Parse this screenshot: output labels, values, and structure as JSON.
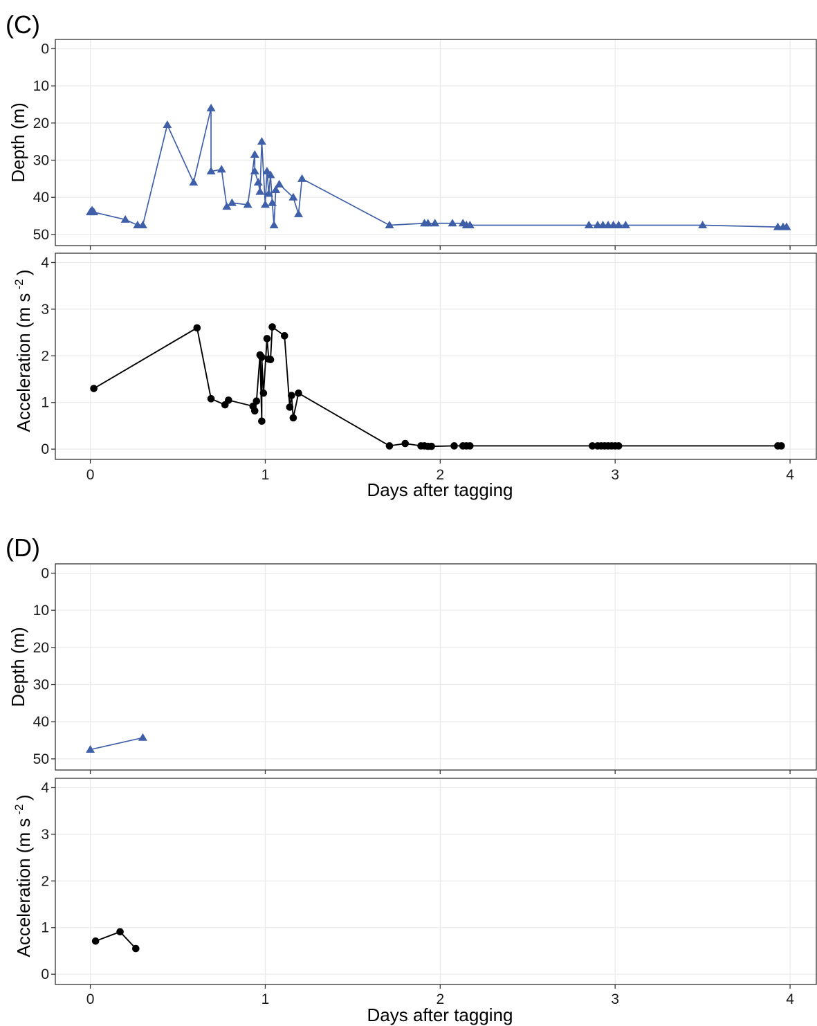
{
  "panel_labels": [
    "(C)",
    "(D)"
  ],
  "colors": {
    "depth": "#3f5fa8",
    "acceleration": "#000000",
    "grid": "#ebebeb",
    "frame": "#333333"
  },
  "chart_data": [
    {
      "panel": "(C)",
      "type": "line",
      "title": "",
      "xlabel": "Days after tagging",
      "x_ticks": [
        "0",
        "1",
        "2",
        "3",
        "4"
      ],
      "xlim": [
        -0.2,
        4.15
      ],
      "subplots": [
        {
          "ylabel": "Depth (m)",
          "ylim": [
            53,
            -2.5
          ],
          "y_reversed": true,
          "y_ticks": [
            "0",
            "10",
            "20",
            "30",
            "40",
            "50"
          ],
          "marker": "triangle",
          "series": [
            {
              "x": [
                0.0,
                0.01,
                0.02,
                0.2,
                0.27,
                0.3,
                0.44,
                0.59,
                0.69,
                0.69,
                0.75,
                0.78,
                0.81,
                0.9,
                0.94,
                0.94,
                0.96,
                0.97,
                0.98,
                1.0,
                1.01,
                1.02,
                1.03,
                1.04,
                1.05,
                1.06,
                1.08,
                1.16,
                1.19,
                1.21,
                1.71,
                1.91,
                1.93,
                1.97,
                2.07,
                2.13,
                2.15,
                2.17,
                2.85,
                2.9,
                2.93,
                2.96,
                2.99,
                3.02,
                3.06,
                3.5,
                3.93,
                3.96,
                3.98
              ],
              "y": [
                44,
                43.5,
                44,
                46,
                47.5,
                47.5,
                20.5,
                36,
                16,
                33,
                32.5,
                42.5,
                41.5,
                42,
                28.5,
                33,
                36,
                38.5,
                25,
                42,
                33,
                39,
                34,
                41.5,
                47.5,
                38,
                36.5,
                40,
                44.5,
                35,
                47.5,
                47,
                47,
                47,
                47,
                47,
                47.5,
                47.5,
                47.5,
                47.5,
                47.5,
                47.5,
                47.5,
                47.5,
                47.5,
                47.5,
                48,
                48,
                48
              ]
            }
          ]
        },
        {
          "ylabel": "Acceleration (m s-2)",
          "ylim": [
            -0.22,
            4.2
          ],
          "y_ticks": [
            "0",
            "1",
            "2",
            "3",
            "4"
          ],
          "marker": "circle",
          "series": [
            {
              "x": [
                0.02,
                0.61,
                0.69,
                0.77,
                0.79,
                0.93,
                0.94,
                0.95,
                0.97,
                0.98,
                0.98,
                0.99,
                1.01,
                1.02,
                1.03,
                1.04,
                1.11,
                1.14,
                1.15,
                1.16,
                1.19,
                1.71,
                1.8,
                1.89,
                1.91,
                1.93,
                1.95,
                2.08,
                2.13,
                2.15,
                2.17,
                2.87,
                2.9,
                2.92,
                2.94,
                2.96,
                2.98,
                3.0,
                3.02,
                3.93,
                3.95
              ],
              "y": [
                1.3,
                2.6,
                1.08,
                0.95,
                1.05,
                0.92,
                0.82,
                1.03,
                2.02,
                0.6,
                1.97,
                1.2,
                2.37,
                1.93,
                1.92,
                2.62,
                2.43,
                0.9,
                1.15,
                0.67,
                1.2,
                0.07,
                0.12,
                0.07,
                0.07,
                0.06,
                0.06,
                0.07,
                0.07,
                0.07,
                0.07,
                0.07,
                0.07,
                0.07,
                0.07,
                0.07,
                0.07,
                0.07,
                0.07,
                0.07,
                0.07
              ]
            }
          ]
        }
      ]
    },
    {
      "panel": "(D)",
      "type": "line",
      "title": "",
      "xlabel": "Days after tagging",
      "x_ticks": [
        "0",
        "1",
        "2",
        "3",
        "4"
      ],
      "xlim": [
        -0.2,
        4.15
      ],
      "subplots": [
        {
          "ylabel": "Depth (m)",
          "ylim": [
            53,
            -2.5
          ],
          "y_reversed": true,
          "y_ticks": [
            "0",
            "10",
            "20",
            "30",
            "40",
            "50"
          ],
          "marker": "triangle",
          "series": [
            {
              "x": [
                0.0,
                0.3
              ],
              "y": [
                47.5,
                44.3
              ]
            }
          ]
        },
        {
          "ylabel": "Acceleration (m s-2)",
          "ylim": [
            -0.22,
            4.2
          ],
          "y_ticks": [
            "0",
            "1",
            "2",
            "3",
            "4"
          ],
          "marker": "circle",
          "series": [
            {
              "x": [
                0.03,
                0.17,
                0.26
              ],
              "y": [
                0.71,
                0.91,
                0.55
              ]
            }
          ]
        }
      ]
    }
  ]
}
